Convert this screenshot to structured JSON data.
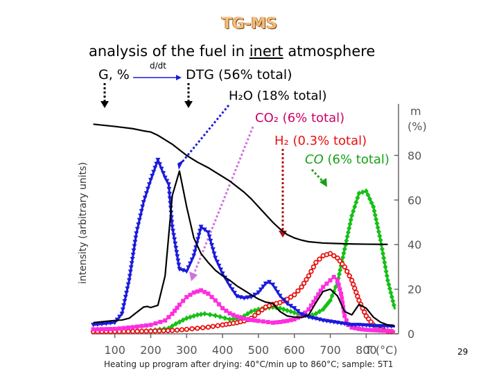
{
  "title": "TG-MS",
  "subtitle": {
    "pre": "analysis of the fuel in ",
    "underlined": "inert",
    "post": " atmosphere"
  },
  "labels": {
    "g_percent": "G, %",
    "d_dt": "d/dt",
    "dtg": "DTG (56% total)",
    "h2o": "H₂O (18% total)",
    "co2": "CO₂ (6% total)",
    "h2": "H₂ (0.3% total)",
    "co_name": "CO",
    "co_rest": " (6% total)"
  },
  "footer": "Heating up program after drying: 40°C/min up to 860°C; sample: 5T1",
  "page_number": "29",
  "colors": {
    "dtg": "#000000",
    "h2o": "#1a1adc",
    "co2": "#ff2de0",
    "h2": "#e81010",
    "co": "#16c016",
    "mass": "#000000",
    "title": "#f4bd7a"
  },
  "chart_data": {
    "type": "line",
    "title": "TG-MS",
    "xlabel": "T (°C)",
    "ylabel": "intensity (arbitrary units)",
    "y2label": "m (%)",
    "xlim": [
      35,
      890
    ],
    "y2lim": [
      0,
      100
    ],
    "ylim": [
      0,
      100
    ],
    "x_ticks": [
      100,
      200,
      300,
      400,
      500,
      600,
      700,
      800
    ],
    "y2_ticks": [
      0,
      20,
      40,
      60,
      80
    ],
    "series": [
      {
        "name": "G, %",
        "key": "mass",
        "axis": "right",
        "marker": "none",
        "x": [
          40,
          100,
          150,
          180,
          200,
          220,
          240,
          260,
          280,
          300,
          330,
          360,
          380,
          400,
          420,
          440,
          460,
          480,
          500,
          520,
          540,
          560,
          580,
          600,
          620,
          640,
          680,
          720,
          760,
          800,
          860
        ],
        "y": [
          94,
          93,
          92,
          91,
          90.5,
          89,
          87,
          85,
          82.5,
          80,
          77,
          74.5,
          72.5,
          70.5,
          68.5,
          66,
          63.5,
          60.5,
          57,
          53.5,
          50,
          47,
          44.5,
          43,
          42,
          41.3,
          40.7,
          40.5,
          40.3,
          40.2,
          40.1
        ]
      },
      {
        "name": "DTG (56% total)",
        "key": "dtg",
        "axis": "left",
        "marker": "none",
        "x": [
          40,
          100,
          120,
          140,
          160,
          180,
          190,
          200,
          220,
          240,
          260,
          280,
          300,
          320,
          340,
          360,
          380,
          400,
          420,
          440,
          460,
          480,
          500,
          520,
          530,
          540,
          560,
          580,
          600,
          620,
          640,
          660,
          680,
          700,
          720,
          740,
          760,
          780,
          800,
          820,
          840,
          860,
          880
        ],
        "y": [
          5,
          6,
          6.2,
          7,
          9.5,
          12,
          12.3,
          11.8,
          12.8,
          26,
          62,
          73,
          57,
          43,
          36,
          32,
          28.5,
          26,
          24,
          21.5,
          19.5,
          17.5,
          15.6,
          14.2,
          14,
          13.5,
          10,
          8,
          7.5,
          7.3,
          8.5,
          14,
          19,
          20,
          17,
          10,
          8.5,
          13.2,
          11.5,
          7.5,
          5.2,
          4,
          3.5
        ]
      },
      {
        "name": "H₂O (18% total)",
        "key": "h2o",
        "axis": "left",
        "marker": "triangle",
        "x": [
          40,
          100,
          120,
          140,
          160,
          180,
          200,
          220,
          240,
          250,
          260,
          280,
          300,
          320,
          340,
          360,
          380,
          400,
          420,
          440,
          460,
          470,
          480,
          500,
          520,
          530,
          540,
          560,
          580,
          600,
          620,
          640,
          660,
          680,
          700,
          720,
          740,
          760,
          780,
          800,
          820,
          840,
          860,
          880
        ],
        "y": [
          4,
          5,
          9,
          24,
          45,
          59,
          69,
          78,
          70,
          67,
          48,
          29,
          28,
          35,
          48,
          45.5,
          34,
          27,
          21.5,
          16.8,
          16,
          16.3,
          16.5,
          18.5,
          22.5,
          23.2,
          22,
          17,
          13.5,
          11.5,
          8.8,
          7.5,
          6.8,
          6,
          5.5,
          5,
          4.5,
          4,
          4,
          3.8,
          3.5,
          3.4,
          3.4,
          3.3
        ]
      },
      {
        "name": "CO₂ (6% total)",
        "key": "co2",
        "axis": "left",
        "marker": "square",
        "x": [
          40,
          100,
          150,
          200,
          240,
          260,
          280,
          300,
          320,
          340,
          360,
          380,
          400,
          420,
          440,
          460,
          480,
          500,
          540,
          560,
          580,
          600,
          620,
          640,
          660,
          680,
          700,
          710,
          720,
          730,
          740,
          750,
          760,
          780,
          800,
          820,
          840,
          860,
          880
        ],
        "y": [
          2,
          2.2,
          3,
          4,
          6,
          9,
          13,
          16.5,
          18.5,
          19.5,
          18,
          15,
          11.5,
          9.2,
          7.8,
          6.8,
          6.2,
          5.8,
          5,
          5.3,
          5.8,
          6.5,
          8,
          11,
          16,
          21,
          24,
          25.5,
          24,
          18,
          8,
          4,
          2.8,
          2.2,
          1.8,
          1.6,
          1.4,
          1.3,
          1.2
        ]
      },
      {
        "name": "H₂ (0.3% total)",
        "key": "h2",
        "axis": "left",
        "marker": "circle",
        "x": [
          40,
          100,
          200,
          260,
          300,
          330,
          360,
          400,
          420,
          440,
          460,
          480,
          500,
          520,
          540,
          560,
          580,
          600,
          620,
          640,
          660,
          680,
          700,
          720,
          740,
          760,
          780,
          800,
          820,
          840,
          860,
          880
        ],
        "y": [
          1,
          1,
          1.2,
          1.5,
          2,
          2.5,
          3,
          4,
          4.5,
          5,
          5.8,
          7,
          9.5,
          12,
          13.2,
          14,
          15.5,
          17.5,
          21,
          26,
          32,
          35,
          36,
          34,
          30,
          24,
          15,
          8,
          4,
          2,
          1.2,
          0.8
        ]
      },
      {
        "name": "CO (6% total)",
        "key": "co",
        "axis": "left",
        "marker": "diamond",
        "x": [
          40,
          100,
          200,
          250,
          270,
          300,
          330,
          350,
          380,
          420,
          440,
          460,
          480,
          500,
          520,
          540,
          560,
          580,
          600,
          620,
          640,
          660,
          680,
          700,
          720,
          740,
          760,
          780,
          800,
          820,
          840,
          860,
          880
        ],
        "y": [
          1,
          1,
          1.5,
          2.5,
          4.5,
          7,
          8.5,
          9,
          8.2,
          6.5,
          6.8,
          8,
          10,
          11,
          11.5,
          12,
          11.5,
          10.5,
          9.5,
          8.5,
          8,
          9,
          11,
          15,
          23,
          38,
          53,
          63,
          64,
          57,
          42,
          24,
          11
        ]
      }
    ],
    "annotations": [
      "G, %",
      "d/dt",
      "DTG (56% total)",
      "H₂O (18% total)",
      "CO₂ (6% total)",
      "H₂ (0.3% total)",
      "CO (6% total)"
    ]
  }
}
